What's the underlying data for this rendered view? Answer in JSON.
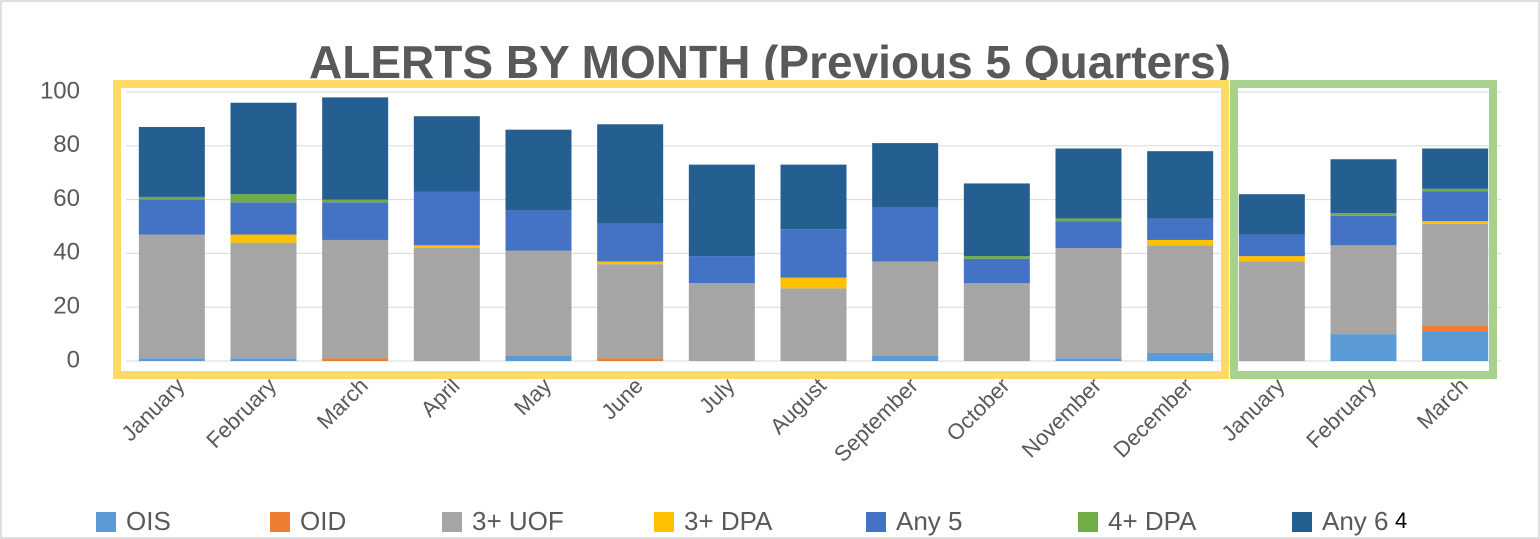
{
  "chart_data": {
    "type": "stacked_bar",
    "title": "ALERTS BY MONTH (Previous 5 Quarters)",
    "categories": [
      "January",
      "February",
      "March",
      "April",
      "May",
      "June",
      "July",
      "August",
      "September",
      "October",
      "November",
      "December",
      "January",
      "February",
      "March"
    ],
    "series": [
      {
        "name": "OIS",
        "color": "#5b9bd5",
        "values": [
          1,
          1,
          0,
          0,
          2,
          0,
          0,
          0,
          2,
          0,
          1,
          3,
          0,
          10,
          11
        ]
      },
      {
        "name": "OID",
        "color": "#ed7d31",
        "values": [
          0,
          0,
          1,
          0,
          0,
          1,
          0,
          0,
          0,
          0,
          0,
          0,
          0,
          0,
          2
        ]
      },
      {
        "name": "3+ UOF",
        "color": "#a5a5a5",
        "values": [
          46,
          43,
          44,
          42,
          39,
          35,
          29,
          27,
          35,
          29,
          41,
          40,
          37,
          33,
          38
        ]
      },
      {
        "name": "3+ DPA",
        "color": "#ffc000",
        "values": [
          0,
          3,
          0,
          1,
          0,
          1,
          0,
          4,
          0,
          0,
          0,
          2,
          2,
          0,
          1
        ]
      },
      {
        "name": "Any 5",
        "color": "#4472c4",
        "values": [
          13,
          12,
          14,
          20,
          15,
          14,
          10,
          18,
          20,
          9,
          10,
          8,
          8,
          11,
          11
        ]
      },
      {
        "name": "4+ DPA",
        "color": "#70ad47",
        "values": [
          1,
          3,
          1,
          0,
          0,
          0,
          0,
          0,
          0,
          1,
          1,
          0,
          0,
          1,
          1
        ]
      },
      {
        "name": "Any 6",
        "color": "#255e91",
        "values": [
          26,
          34,
          38,
          28,
          30,
          37,
          34,
          24,
          24,
          27,
          26,
          25,
          15,
          20,
          15
        ]
      }
    ],
    "ylim": [
      0,
      100
    ],
    "yticks": [
      0,
      20,
      40,
      60,
      80,
      100
    ],
    "grid": true,
    "legend": "bottom",
    "page_number": "4"
  }
}
